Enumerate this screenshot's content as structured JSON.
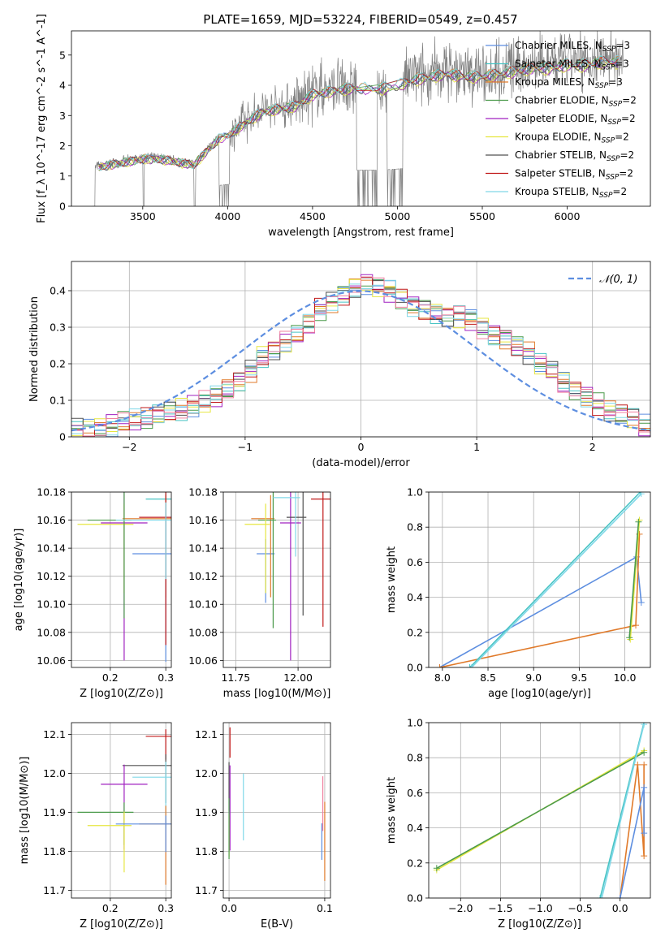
{
  "figure": {
    "title": "PLATE=1659, MJD=53224, FIBERID=0549, z=0.457"
  },
  "chart_data": [
    {
      "type": "line",
      "id": "spectrum",
      "xlabel": "wavelength [Angstrom, rest frame]",
      "ylabel": "Flux [f_λ 10^-17 erg cm^-2 s^-1 A^-1]",
      "xlim": [
        3080,
        6490
      ],
      "ylim": [
        0,
        5.8
      ],
      "xticks": [
        3500,
        4000,
        4500,
        5000,
        5500,
        6000
      ],
      "yticks": [
        0,
        1,
        2,
        3,
        4,
        5
      ],
      "data_color": "#808080",
      "data_anchor_x": [
        3180,
        3220,
        3300,
        3400,
        3500,
        3600,
        3700,
        3800,
        3900,
        3950,
        4000,
        4100,
        4200,
        4300,
        4400,
        4500,
        4600,
        4700,
        4800,
        4900,
        5000,
        5100,
        5200,
        5300,
        5400,
        5500,
        5600,
        5700,
        5800,
        5900,
        6000,
        6100,
        6200,
        6300
      ],
      "data_anchor_y": [
        0.4,
        1.3,
        1.4,
        1.5,
        1.6,
        1.6,
        1.5,
        1.4,
        2.0,
        2.3,
        2.4,
        2.8,
        3.2,
        3.3,
        3.4,
        3.8,
        3.9,
        4.0,
        4.0,
        4.0,
        4.1,
        4.3,
        4.4,
        4.5,
        4.4,
        4.4,
        4.5,
        4.6,
        4.7,
        4.7,
        4.8,
        4.8,
        4.9,
        4.9
      ],
      "gap_ranges": [
        [
          3950,
          4010
        ],
        [
          4760,
          4880
        ],
        [
          4940,
          5030
        ]
      ],
      "legend": [
        {
          "name": "Chabrier MILES, N_SSP=3",
          "color": "#5d8ee0"
        },
        {
          "name": "Salpeter MILES, N_SSP=3",
          "color": "#48c4c4"
        },
        {
          "name": "Kroupa MILES, N_SSP=3",
          "color": "#e07a2a"
        },
        {
          "name": "Chabrier ELODIE, N_SSP=2",
          "color": "#4a9a4a"
        },
        {
          "name": "Salpeter ELODIE, N_SSP=2",
          "color": "#a020c0"
        },
        {
          "name": "Kroupa ELODIE, N_SSP=2",
          "color": "#e6e640"
        },
        {
          "name": "Chabrier STELIB, N_SSP=2",
          "color": "#505050"
        },
        {
          "name": "Salpeter STELIB, N_SSP=2",
          "color": "#c01818"
        },
        {
          "name": "Kroupa STELIB, N_SSP=2",
          "color": "#80d8e8"
        }
      ]
    },
    {
      "type": "line",
      "id": "residuals",
      "xlabel": "(data-model)/error",
      "ylabel": "Normed distribution",
      "xlim": [
        -2.5,
        2.5
      ],
      "ylim": [
        0,
        0.48
      ],
      "xticks": [
        -2,
        -1,
        0,
        1,
        2
      ],
      "yticks": [
        0.0,
        0.1,
        0.2,
        0.3,
        0.4
      ],
      "gaussian_label": "𝒩(0, 1)",
      "gaussian_color": "#5d8ee0",
      "bin_edges": [
        -2.5,
        -2.4,
        -2.3,
        -2.2,
        -2.1,
        -2.0,
        -1.9,
        -1.8,
        -1.7,
        -1.6,
        -1.5,
        -1.4,
        -1.3,
        -1.2,
        -1.1,
        -1.0,
        -0.9,
        -0.8,
        -0.7,
        -0.6,
        -0.5,
        -0.4,
        -0.3,
        -0.2,
        -0.1,
        0.0,
        0.1,
        0.2,
        0.3,
        0.4,
        0.5,
        0.6,
        0.7,
        0.8,
        0.9,
        1.0,
        1.1,
        1.2,
        1.3,
        1.4,
        1.5,
        1.6,
        1.7,
        1.8,
        1.9,
        2.0,
        2.1,
        2.2,
        2.3,
        2.4,
        2.5
      ],
      "hist_base": [
        0.02,
        0.02,
        0.025,
        0.03,
        0.04,
        0.045,
        0.05,
        0.06,
        0.07,
        0.075,
        0.085,
        0.095,
        0.11,
        0.13,
        0.15,
        0.18,
        0.22,
        0.24,
        0.26,
        0.28,
        0.31,
        0.35,
        0.37,
        0.39,
        0.41,
        0.42,
        0.41,
        0.4,
        0.38,
        0.36,
        0.35,
        0.34,
        0.33,
        0.33,
        0.32,
        0.3,
        0.28,
        0.27,
        0.25,
        0.23,
        0.2,
        0.18,
        0.15,
        0.13,
        0.11,
        0.09,
        0.07,
        0.06,
        0.05,
        0.03
      ],
      "series_colors": [
        "#5d8ee0",
        "#48c4c4",
        "#e07a2a",
        "#4a9a4a",
        "#a020c0",
        "#e6e640",
        "#505050",
        "#c01818",
        "#80d8e8",
        "#f080a0"
      ]
    },
    {
      "type": "scatter",
      "id": "age-vs-Z",
      "xlabel": "Z [log10(Z/Z⊙)]",
      "ylabel": "age [log10(age/yr)]",
      "xlim": [
        0.13,
        0.31
      ],
      "ylim": [
        10.055,
        10.18
      ],
      "xticks": [
        0.2,
        0.3
      ],
      "xtick_labels": [
        "0.2",
        "0.3"
      ],
      "yticks": [
        10.06,
        10.08,
        10.1,
        10.12,
        10.14,
        10.16,
        10.18
      ],
      "ytick_labels": [
        "10.06",
        "10.08",
        "10.10",
        "10.12",
        "10.14",
        "10.16",
        "10.18"
      ],
      "points": [
        {
          "x": 0.3,
          "y": 10.175,
          "color": "#48c4c4"
        },
        {
          "x": 0.3,
          "y": 10.161,
          "color": "#e07a2a"
        },
        {
          "x": 0.3,
          "y": 10.136,
          "color": "#5d8ee0"
        },
        {
          "x": 0.225,
          "y": 10.158,
          "color": "#a020c0"
        },
        {
          "x": 0.225,
          "y": 10.157,
          "color": "#e6e640"
        },
        {
          "x": 0.225,
          "y": 10.16,
          "color": "#4a9a4a"
        },
        {
          "x": 0.3,
          "y": 10.162,
          "color": "#c01818"
        },
        {
          "x": 0.3,
          "y": 10.16,
          "color": "#80d8e8"
        }
      ]
    },
    {
      "type": "scatter",
      "id": "age-vs-mass",
      "xlabel": "mass [log10(M/M⊙)]",
      "ylabel": "",
      "xlim": [
        11.7,
        12.13
      ],
      "ylim": [
        10.055,
        10.18
      ],
      "xticks": [
        11.75,
        12.0
      ],
      "xtick_labels": [
        "11.75",
        "12.00"
      ],
      "yticks": [
        10.06,
        10.08,
        10.1,
        10.12,
        10.14,
        10.16,
        10.18
      ],
      "ytick_labels": [
        "10.06",
        "10.08",
        "10.10",
        "10.12",
        "10.14",
        "10.16",
        "10.18"
      ],
      "points": [
        {
          "x": 11.87,
          "y": 10.136,
          "color": "#5d8ee0"
        },
        {
          "x": 11.89,
          "y": 10.161,
          "color": "#e07a2a"
        },
        {
          "x": 11.9,
          "y": 10.16,
          "color": "#4a9a4a"
        },
        {
          "x": 11.97,
          "y": 10.158,
          "color": "#a020c0"
        },
        {
          "x": 11.87,
          "y": 10.157,
          "color": "#e6e640"
        },
        {
          "x": 12.02,
          "y": 10.162,
          "color": "#505050"
        },
        {
          "x": 12.1,
          "y": 10.175,
          "color": "#c01818"
        },
        {
          "x": 11.99,
          "y": 10.176,
          "color": "#80d8e8"
        }
      ]
    },
    {
      "type": "line",
      "id": "weight-vs-age",
      "xlabel": "age  [log10(age/yr)]",
      "ylabel": "mass weight",
      "xlim": [
        7.85,
        10.28
      ],
      "ylim": [
        0,
        1.0
      ],
      "xticks": [
        8.0,
        8.5,
        9.0,
        9.5,
        10.0
      ],
      "xtick_labels": [
        "8.0",
        "8.5",
        "9.0",
        "9.5",
        "10.0"
      ],
      "yticks": [
        0,
        0.2,
        0.4,
        0.6,
        0.8,
        1.0
      ],
      "ytick_labels": [
        "0.0",
        "0.2",
        "0.4",
        "0.6",
        "0.8",
        "1.0"
      ],
      "series": [
        {
          "color": "#5d8ee0",
          "x": [
            7.97,
            10.13,
            10.18
          ],
          "y": [
            0.0,
            0.63,
            0.37
          ]
        },
        {
          "color": "#e07a2a",
          "x": [
            7.97,
            10.12,
            10.16
          ],
          "y": [
            0.0,
            0.24,
            0.76
          ]
        },
        {
          "color": "#48c4c4",
          "x": [
            8.3,
            10.17
          ],
          "y": [
            0.0,
            1.0
          ]
        },
        {
          "color": "#80d8e8",
          "x": [
            8.32,
            10.18
          ],
          "y": [
            0.0,
            0.99
          ]
        },
        {
          "color": "#e6e640",
          "x": [
            10.06,
            10.16
          ],
          "y": [
            0.16,
            0.84
          ]
        },
        {
          "color": "#4a9a4a",
          "x": [
            10.05,
            10.15
          ],
          "y": [
            0.17,
            0.83
          ]
        }
      ]
    },
    {
      "type": "scatter",
      "id": "mass-vs-Z",
      "xlabel": "Z [log10(Z/Z⊙)]",
      "ylabel": "mass [log10(M/M⊙)]",
      "xlim": [
        0.13,
        0.31
      ],
      "ylim": [
        11.68,
        12.13
      ],
      "xticks": [
        0.2,
        0.3
      ],
      "xtick_labels": [
        "0.2",
        "0.3"
      ],
      "yticks": [
        11.7,
        11.8,
        11.9,
        12.0,
        12.1
      ],
      "ytick_labels": [
        "11.7",
        "11.8",
        "11.9",
        "12.0",
        "12.1"
      ],
      "points": [
        {
          "x": 0.3,
          "y": 12.095,
          "color": "#c01818"
        },
        {
          "x": 0.3,
          "y": 12.02,
          "color": "#505050"
        },
        {
          "x": 0.3,
          "y": 11.99,
          "color": "#80d8e8"
        },
        {
          "x": 0.225,
          "y": 11.972,
          "color": "#a020c0"
        },
        {
          "x": 0.225,
          "y": 11.9,
          "color": "#4a9a4a"
        },
        {
          "x": 0.225,
          "y": 11.866,
          "color": "#e6e640"
        },
        {
          "x": 0.3,
          "y": 11.87,
          "color": "#e07a2a"
        },
        {
          "x": 0.3,
          "y": 11.87,
          "color": "#5d8ee0"
        }
      ]
    },
    {
      "type": "scatter",
      "id": "mass-vs-ebv",
      "xlabel": "E(B-V)",
      "ylabel": "",
      "xlim": [
        -0.006,
        0.106
      ],
      "ylim": [
        11.68,
        12.13
      ],
      "xticks": [
        0.0,
        0.1
      ],
      "xtick_labels": [
        "0.0",
        "0.1"
      ],
      "yticks": [
        11.7,
        11.8,
        11.9,
        12.0,
        12.1
      ],
      "ytick_labels": [
        "11.7",
        "11.8",
        "11.9",
        "12.0",
        "12.1"
      ],
      "points": [
        {
          "x": 0.001,
          "y": 12.1,
          "color": "#c01818"
        },
        {
          "x": 0.0,
          "y": 12.0,
          "color": "#505050"
        },
        {
          "x": 0.015,
          "y": 11.96,
          "color": "#80d8e8"
        },
        {
          "x": 0.001,
          "y": 11.97,
          "color": "#a020c0"
        },
        {
          "x": 0.0,
          "y": 11.87,
          "color": "#e6e640"
        },
        {
          "x": 0.0,
          "y": 11.9,
          "color": "#4a9a4a"
        },
        {
          "x": 0.1,
          "y": 11.88,
          "color": "#e07a2a"
        },
        {
          "x": 0.097,
          "y": 11.85,
          "color": "#5d8ee0"
        },
        {
          "x": 0.098,
          "y": 11.96,
          "color": "#f080a0"
        }
      ]
    },
    {
      "type": "line",
      "id": "weight-vs-Z",
      "xlabel": "Z [log10(Z/Z⊙)]",
      "ylabel": "mass weight",
      "xlim": [
        -2.4,
        0.38
      ],
      "ylim": [
        0,
        1.0
      ],
      "xticks": [
        -2.0,
        -1.5,
        -1.0,
        -0.5,
        0.0
      ],
      "xtick_labels": [
        "−2.0",
        "−1.5",
        "−1.0",
        "−0.5",
        "0.0"
      ],
      "yticks": [
        0,
        0.2,
        0.4,
        0.6,
        0.8,
        1.0
      ],
      "ytick_labels": [
        "0.0",
        "0.2",
        "0.4",
        "0.6",
        "0.8",
        "1.0"
      ],
      "series": [
        {
          "color": "#e6e640",
          "x": [
            -2.3,
            0.3
          ],
          "y": [
            0.16,
            0.84
          ]
        },
        {
          "color": "#4a9a4a",
          "x": [
            -2.3,
            0.3
          ],
          "y": [
            0.17,
            0.83
          ]
        },
        {
          "color": "#48c4c4",
          "x": [
            -0.25,
            0.3
          ],
          "y": [
            0.0,
            1.0
          ]
        },
        {
          "color": "#80d8e8",
          "x": [
            -0.23,
            0.3
          ],
          "y": [
            0.0,
            0.99
          ]
        },
        {
          "color": "#e07a2a",
          "x": [
            0.0,
            0.22,
            0.3,
            0.3
          ],
          "y": [
            0.0,
            0.76,
            0.24,
            0.76
          ]
        },
        {
          "color": "#5d8ee0",
          "x": [
            0.0,
            0.3,
            0.3
          ],
          "y": [
            0.0,
            0.63,
            0.37
          ]
        }
      ]
    }
  ]
}
